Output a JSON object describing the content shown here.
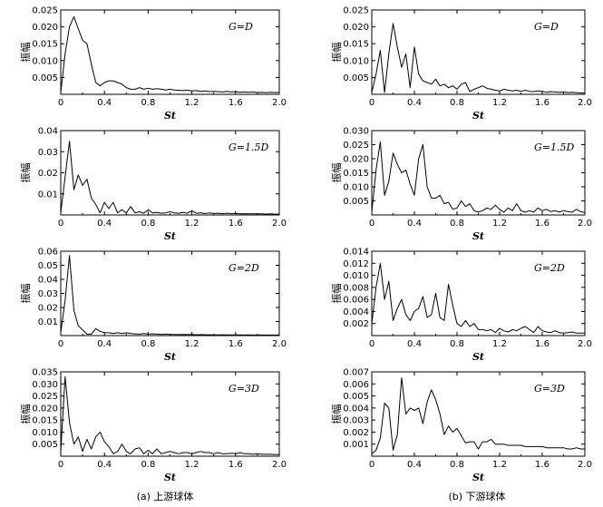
{
  "captions": {
    "left": "(a) 上游球体",
    "right": "(b) 下游球体"
  },
  "chart_data": [
    {
      "type": "line",
      "title": "G=D",
      "xlabel": "St",
      "ylabel": "振幅",
      "xlim": [
        0,
        2.0
      ],
      "ylim": [
        0,
        0.025
      ],
      "xticks": [
        "0",
        "0.4",
        "0.8",
        "1.2",
        "1.6",
        "2.0"
      ],
      "yticks": [
        "0.005",
        "0.010",
        "0.015",
        "0.020",
        "0.025"
      ],
      "x": [
        0,
        0.04,
        0.08,
        0.12,
        0.16,
        0.2,
        0.24,
        0.28,
        0.32,
        0.36,
        0.4,
        0.44,
        0.48,
        0.52,
        0.56,
        0.6,
        0.64,
        0.68,
        0.72,
        0.76,
        0.8,
        0.84,
        0.88,
        0.92,
        0.96,
        1.0,
        1.04,
        1.08,
        1.12,
        1.16,
        1.2,
        1.24,
        1.28,
        1.32,
        1.36,
        1.4,
        1.44,
        1.48,
        1.52,
        1.56,
        1.6,
        1.64,
        1.68,
        1.72,
        1.76,
        1.8,
        1.84,
        1.88,
        1.92,
        1.96,
        2.0
      ],
      "values": [
        0.0005,
        0.012,
        0.02,
        0.023,
        0.0195,
        0.016,
        0.015,
        0.009,
        0.0035,
        0.0025,
        0.0035,
        0.004,
        0.004,
        0.0035,
        0.003,
        0.002,
        0.0015,
        0.0015,
        0.002,
        0.0015,
        0.0018,
        0.0015,
        0.0017,
        0.0015,
        0.0013,
        0.0015,
        0.0013,
        0.0012,
        0.0011,
        0.0012,
        0.001,
        0.0011,
        0.0009,
        0.001,
        0.0008,
        0.0009,
        0.0008,
        0.0007,
        0.0009,
        0.0007,
        0.0008,
        0.0006,
        0.0007,
        0.0006,
        0.0007,
        0.0005,
        0.0006,
        0.0005,
        0.0006,
        0.0005,
        0.0006
      ]
    },
    {
      "type": "line",
      "title": "G=D",
      "xlabel": "St",
      "ylabel": "振幅",
      "xlim": [
        0,
        2.0
      ],
      "ylim": [
        0,
        0.025
      ],
      "xticks": [
        "0",
        "0.4",
        "0.8",
        "1.2",
        "1.6",
        "2.0"
      ],
      "yticks": [
        "0.005",
        "0.010",
        "0.015",
        "0.020",
        "0.025"
      ],
      "x": [
        0,
        0.04,
        0.08,
        0.12,
        0.16,
        0.2,
        0.24,
        0.28,
        0.32,
        0.36,
        0.4,
        0.44,
        0.48,
        0.52,
        0.56,
        0.6,
        0.64,
        0.68,
        0.72,
        0.76,
        0.8,
        0.84,
        0.88,
        0.92,
        0.96,
        1.0,
        1.04,
        1.08,
        1.12,
        1.16,
        1.2,
        1.24,
        1.28,
        1.32,
        1.36,
        1.4,
        1.44,
        1.48,
        1.52,
        1.56,
        1.6,
        1.64,
        1.68,
        1.72,
        1.76,
        1.8,
        1.84,
        1.88,
        1.92,
        1.96,
        2.0
      ],
      "values": [
        0.0005,
        0.006,
        0.013,
        0.0005,
        0.012,
        0.021,
        0.014,
        0.008,
        0.012,
        0.002,
        0.014,
        0.006,
        0.004,
        0.0035,
        0.003,
        0.0045,
        0.0025,
        0.003,
        0.002,
        0.0025,
        0.0015,
        0.003,
        0.0035,
        0.0008,
        0.0015,
        0.002,
        0.0025,
        0.0018,
        0.0015,
        0.0012,
        0.001,
        0.0015,
        0.0012,
        0.001,
        0.0012,
        0.0009,
        0.0012,
        0.0009,
        0.0008,
        0.001,
        0.0009,
        0.0006,
        0.0008,
        0.0007,
        0.0006,
        0.0007,
        0.0005,
        0.0006,
        0.0005,
        0.0004,
        0.0004
      ]
    },
    {
      "type": "line",
      "title": "G=1.5D",
      "xlabel": "St",
      "ylabel": "振幅",
      "xlim": [
        0,
        2.0
      ],
      "ylim": [
        0,
        0.04
      ],
      "xticks": [
        "0",
        "0.4",
        "0.8",
        "1.2",
        "1.6",
        "2.0"
      ],
      "yticks": [
        "0.01",
        "0.02",
        "0.03",
        "0.04"
      ],
      "x": [
        0,
        0.04,
        0.08,
        0.12,
        0.16,
        0.2,
        0.24,
        0.28,
        0.32,
        0.36,
        0.4,
        0.44,
        0.48,
        0.52,
        0.56,
        0.6,
        0.64,
        0.68,
        0.72,
        0.76,
        0.8,
        0.84,
        0.88,
        0.92,
        0.96,
        1.0,
        1.04,
        1.08,
        1.12,
        1.16,
        1.2,
        1.24,
        1.28,
        1.32,
        1.36,
        1.4,
        1.44,
        1.48,
        1.52,
        1.56,
        1.6,
        1.64,
        1.68,
        1.72,
        1.76,
        1.8,
        1.84,
        1.88,
        1.92,
        1.96,
        2.0
      ],
      "values": [
        0.001,
        0.018,
        0.035,
        0.012,
        0.019,
        0.014,
        0.017,
        0.008,
        0.005,
        0.001,
        0.006,
        0.003,
        0.006,
        0.001,
        0.0025,
        0.001,
        0.004,
        0.001,
        0.0015,
        0.0008,
        0.0025,
        0.001,
        0.0012,
        0.0008,
        0.001,
        0.0015,
        0.001,
        0.0008,
        0.0012,
        0.0008,
        0.002,
        0.0008,
        0.001,
        0.0007,
        0.001,
        0.0007,
        0.0008,
        0.0006,
        0.0008,
        0.0006,
        0.0007,
        0.0005,
        0.0006,
        0.0005,
        0.0005,
        0.0005,
        0.0005,
        0.0004,
        0.0005,
        0.0004,
        0.0004
      ]
    },
    {
      "type": "line",
      "title": "G=1.5D",
      "xlabel": "St",
      "ylabel": "振幅",
      "xlim": [
        0,
        2.0
      ],
      "ylim": [
        0,
        0.03
      ],
      "xticks": [
        "0",
        "0.4",
        "0.8",
        "1.2",
        "1.6",
        "2.0"
      ],
      "yticks": [
        "0.005",
        "0.010",
        "0.015",
        "0.020",
        "0.025",
        "0.030"
      ],
      "x": [
        0,
        0.04,
        0.08,
        0.12,
        0.16,
        0.2,
        0.24,
        0.28,
        0.32,
        0.36,
        0.4,
        0.44,
        0.48,
        0.52,
        0.56,
        0.6,
        0.64,
        0.68,
        0.72,
        0.76,
        0.8,
        0.84,
        0.88,
        0.92,
        0.96,
        1.0,
        1.04,
        1.08,
        1.12,
        1.16,
        1.2,
        1.24,
        1.28,
        1.32,
        1.36,
        1.4,
        1.44,
        1.48,
        1.52,
        1.56,
        1.6,
        1.64,
        1.68,
        1.72,
        1.76,
        1.8,
        1.84,
        1.88,
        1.92,
        1.96,
        2.0
      ],
      "values": [
        0.001,
        0.016,
        0.026,
        0.007,
        0.012,
        0.022,
        0.018,
        0.015,
        0.016,
        0.011,
        0.007,
        0.02,
        0.025,
        0.01,
        0.006,
        0.006,
        0.007,
        0.004,
        0.0045,
        0.002,
        0.0025,
        0.005,
        0.003,
        0.004,
        0.0015,
        0.001,
        0.0015,
        0.0025,
        0.002,
        0.0035,
        0.002,
        0.001,
        0.0025,
        0.0015,
        0.004,
        0.0015,
        0.001,
        0.0015,
        0.001,
        0.0025,
        0.0015,
        0.002,
        0.0012,
        0.0015,
        0.001,
        0.0015,
        0.0012,
        0.001,
        0.002,
        0.0012,
        0.0008
      ]
    },
    {
      "type": "line",
      "title": "G=2D",
      "xlabel": "St",
      "ylabel": "振幅",
      "xlim": [
        0,
        2.0
      ],
      "ylim": [
        0,
        0.06
      ],
      "xticks": [
        "0",
        "0.4",
        "0.8",
        "1.2",
        "1.6",
        "2.0"
      ],
      "yticks": [
        "0.01",
        "0.02",
        "0.03",
        "0.04",
        "0.05",
        "0.06"
      ],
      "x": [
        0,
        0.04,
        0.08,
        0.12,
        0.16,
        0.2,
        0.24,
        0.28,
        0.32,
        0.36,
        0.4,
        0.44,
        0.48,
        0.52,
        0.56,
        0.6,
        0.64,
        0.68,
        0.72,
        0.76,
        0.8,
        0.84,
        0.88,
        0.92,
        0.96,
        1.0,
        1.04,
        1.08,
        1.12,
        1.16,
        1.2,
        1.24,
        1.28,
        1.32,
        1.36,
        1.4,
        1.44,
        1.48,
        1.52,
        1.56,
        1.6,
        1.64,
        1.68,
        1.72,
        1.76,
        1.8,
        1.84,
        1.88,
        1.92,
        1.96,
        2.0
      ],
      "values": [
        0.002,
        0.025,
        0.057,
        0.018,
        0.007,
        0.004,
        0.001,
        0.001,
        0.005,
        0.003,
        0.002,
        0.002,
        0.0015,
        0.002,
        0.0015,
        0.002,
        0.0015,
        0.0012,
        0.001,
        0.0015,
        0.001,
        0.0012,
        0.001,
        0.0008,
        0.001,
        0.0008,
        0.0008,
        0.0007,
        0.0008,
        0.0007,
        0.0008,
        0.0006,
        0.0007,
        0.0006,
        0.0006,
        0.0006,
        0.0005,
        0.0006,
        0.0005,
        0.0005,
        0.0005,
        0.0005,
        0.0004,
        0.0005,
        0.0004,
        0.0004,
        0.0004,
        0.0004,
        0.0004,
        0.0004,
        0.0004
      ]
    },
    {
      "type": "line",
      "title": "G=2D",
      "xlabel": "St",
      "ylabel": "振幅",
      "xlim": [
        0,
        2.0
      ],
      "ylim": [
        0,
        0.014
      ],
      "xticks": [
        "0",
        "0.4",
        "0.8",
        "1.2",
        "1.6",
        "2.0"
      ],
      "yticks": [
        "0.002",
        "0.004",
        "0.006",
        "0.008",
        "0.010",
        "0.012",
        "0.014"
      ],
      "x": [
        0,
        0.04,
        0.08,
        0.12,
        0.16,
        0.2,
        0.24,
        0.28,
        0.32,
        0.36,
        0.4,
        0.44,
        0.48,
        0.52,
        0.56,
        0.6,
        0.64,
        0.68,
        0.72,
        0.76,
        0.8,
        0.84,
        0.88,
        0.92,
        0.96,
        1.0,
        1.04,
        1.08,
        1.12,
        1.16,
        1.2,
        1.24,
        1.28,
        1.32,
        1.36,
        1.4,
        1.44,
        1.48,
        1.52,
        1.56,
        1.6,
        1.64,
        1.68,
        1.72,
        1.76,
        1.8,
        1.84,
        1.88,
        1.92,
        1.96,
        2.0
      ],
      "values": [
        0.002,
        0.008,
        0.012,
        0.006,
        0.009,
        0.0025,
        0.0045,
        0.006,
        0.0035,
        0.0025,
        0.004,
        0.0045,
        0.0065,
        0.003,
        0.0035,
        0.007,
        0.003,
        0.0025,
        0.0085,
        0.005,
        0.002,
        0.0015,
        0.0025,
        0.0015,
        0.002,
        0.001,
        0.001,
        0.0008,
        0.001,
        0.0005,
        0.0012,
        0.0008,
        0.0006,
        0.001,
        0.0008,
        0.0012,
        0.0015,
        0.001,
        0.0005,
        0.0015,
        0.0008,
        0.0006,
        0.0005,
        0.0008,
        0.0005,
        0.0004,
        0.0005,
        0.0006,
        0.0004,
        0.0004,
        0.0004
      ]
    },
    {
      "type": "line",
      "title": "G=3D",
      "xlabel": "St",
      "ylabel": "振幅",
      "xlim": [
        0,
        2.0
      ],
      "ylim": [
        0,
        0.035
      ],
      "xticks": [
        "0",
        "0.4",
        "0.8",
        "1.2",
        "1.6",
        "2.0"
      ],
      "yticks": [
        "0.005",
        "0.010",
        "0.015",
        "0.020",
        "0.025",
        "0.030",
        "0.035"
      ],
      "x": [
        0,
        0.04,
        0.08,
        0.12,
        0.16,
        0.2,
        0.24,
        0.28,
        0.32,
        0.36,
        0.4,
        0.44,
        0.48,
        0.52,
        0.56,
        0.6,
        0.64,
        0.68,
        0.72,
        0.76,
        0.8,
        0.84,
        0.88,
        0.92,
        0.96,
        1.0,
        1.04,
        1.08,
        1.12,
        1.16,
        1.2,
        1.24,
        1.28,
        1.32,
        1.36,
        1.4,
        1.44,
        1.48,
        1.52,
        1.56,
        1.6,
        1.64,
        1.68,
        1.72,
        1.76,
        1.8,
        1.84,
        1.88,
        1.92,
        1.96,
        2.0
      ],
      "values": [
        0.002,
        0.033,
        0.014,
        0.005,
        0.008,
        0.002,
        0.007,
        0.003,
        0.008,
        0.01,
        0.006,
        0.004,
        0.001,
        0.002,
        0.005,
        0.002,
        0.001,
        0.003,
        0.0035,
        0.001,
        0.0025,
        0.001,
        0.003,
        0.001,
        0.0015,
        0.002,
        0.0015,
        0.001,
        0.0015,
        0.0015,
        0.001,
        0.0015,
        0.002,
        0.0015,
        0.0015,
        0.001,
        0.0015,
        0.001,
        0.001,
        0.0012,
        0.001,
        0.0015,
        0.001,
        0.001,
        0.0008,
        0.001,
        0.0008,
        0.0008,
        0.0008,
        0.0007,
        0.0007
      ]
    },
    {
      "type": "line",
      "title": "G=3D",
      "xlabel": "St",
      "ylabel": "振幅",
      "xlim": [
        0,
        2.0
      ],
      "ylim": [
        0,
        0.007
      ],
      "xticks": [
        "0",
        "0.4",
        "0.8",
        "1.2",
        "1.6",
        "2.0"
      ],
      "yticks": [
        "0.001",
        "0.002",
        "0.003",
        "0.004",
        "0.005",
        "0.006",
        "0.007"
      ],
      "x": [
        0,
        0.04,
        0.08,
        0.12,
        0.16,
        0.2,
        0.24,
        0.28,
        0.32,
        0.36,
        0.4,
        0.44,
        0.48,
        0.52,
        0.56,
        0.6,
        0.64,
        0.68,
        0.72,
        0.76,
        0.8,
        0.84,
        0.88,
        0.92,
        0.96,
        1.0,
        1.04,
        1.08,
        1.12,
        1.16,
        1.2,
        1.24,
        1.28,
        1.32,
        1.36,
        1.4,
        1.44,
        1.48,
        1.52,
        1.56,
        1.6,
        1.64,
        1.68,
        1.72,
        1.76,
        1.8,
        1.84,
        1.88,
        1.92,
        1.96,
        2.0
      ],
      "values": [
        0.0002,
        0.0005,
        0.0015,
        0.0044,
        0.004,
        0.0005,
        0.0018,
        0.0065,
        0.0035,
        0.004,
        0.0038,
        0.004,
        0.0027,
        0.0045,
        0.0055,
        0.0047,
        0.0035,
        0.0018,
        0.0025,
        0.002,
        0.0023,
        0.0017,
        0.0011,
        0.0012,
        0.0012,
        0.0006,
        0.0012,
        0.0012,
        0.0014,
        0.001,
        0.001,
        0.001,
        0.0009,
        0.0009,
        0.0009,
        0.0009,
        0.0008,
        0.0008,
        0.0008,
        0.0008,
        0.0008,
        0.0007,
        0.0007,
        0.0007,
        0.0007,
        0.0007,
        0.0006,
        0.0006,
        0.0007,
        0.0006,
        0.0006
      ]
    }
  ]
}
